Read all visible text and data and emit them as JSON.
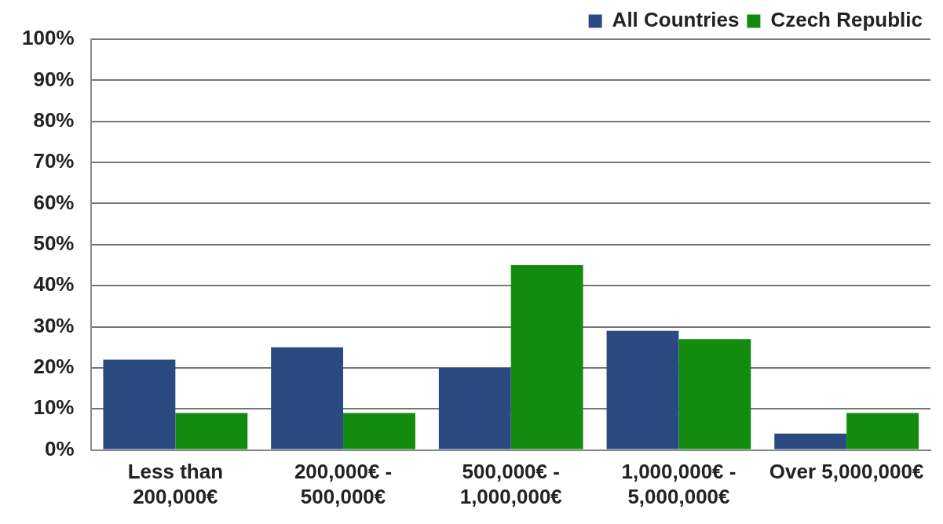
{
  "chart_data": {
    "type": "bar",
    "categories": [
      "Less than 200,000€",
      "200,000€ - 500,000€",
      "500,000€ - 1,000,000€",
      "1,000,000€ - 5,000,000€",
      "Over 5,000,000€"
    ],
    "series": [
      {
        "name": "All Countries",
        "color": "#2b4a82",
        "values": [
          22,
          25,
          20,
          29,
          4
        ]
      },
      {
        "name": "Czech Republic",
        "color": "#138b0e",
        "values": [
          9,
          9,
          45,
          27,
          9
        ]
      }
    ],
    "ylim": [
      0,
      100
    ],
    "yticks": [
      {
        "value": 0,
        "label": "0%"
      },
      {
        "value": 10,
        "label": "10%"
      },
      {
        "value": 20,
        "label": "20%"
      },
      {
        "value": 30,
        "label": "30%"
      },
      {
        "value": 40,
        "label": "40%"
      },
      {
        "value": 50,
        "label": "50%"
      },
      {
        "value": 60,
        "label": "60%"
      },
      {
        "value": 70,
        "label": "70%"
      },
      {
        "value": 80,
        "label": "80%"
      },
      {
        "value": 90,
        "label": "90%"
      },
      {
        "value": 100,
        "label": "100%"
      }
    ],
    "grid": "y",
    "legend": "top right"
  }
}
